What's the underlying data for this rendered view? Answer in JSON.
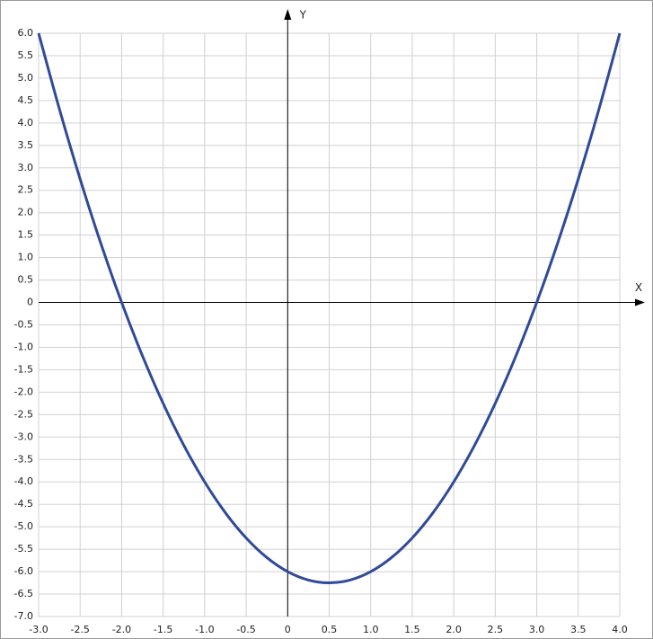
{
  "chart_data": {
    "type": "line",
    "x_label": "X",
    "y_label": "Y",
    "x": [
      -3,
      -2.75,
      -2.5,
      -2.25,
      -2,
      -1.75,
      -1.5,
      -1.25,
      -1,
      -0.75,
      -0.5,
      -0.25,
      0,
      0.25,
      0.5,
      0.75,
      1,
      1.25,
      1.5,
      1.75,
      2,
      2.25,
      2.5,
      2.75,
      3,
      3.25,
      3.5,
      3.75,
      4
    ],
    "series": [
      {
        "color": "#2f4a98",
        "values": [
          6,
          4.3125,
          2.75,
          1.3125,
          0,
          -1.1875,
          -2.25,
          -3.1875,
          -4,
          -4.6875,
          -5.25,
          -5.6875,
          -6,
          -6.1875,
          -6.25,
          -6.1875,
          -6,
          -5.6875,
          -5.25,
          -4.6875,
          -4,
          -3.1875,
          -2.25,
          -1.1875,
          0,
          1.3125,
          2.75,
          4.3125,
          6
        ]
      }
    ],
    "xlim": [
      -3,
      4
    ],
    "ylim": [
      -7,
      6
    ],
    "grid": true,
    "xticks": [
      {
        "value": -3,
        "label": "-3.0"
      },
      -2.5,
      {
        "value": -2,
        "label": "-2.0"
      },
      -1.5,
      {
        "value": -1,
        "label": "-1.0"
      },
      -0.5,
      0,
      0.5,
      {
        "value": 1,
        "label": "1.0"
      },
      1.5,
      {
        "value": 2,
        "label": "2.0"
      },
      2.5,
      {
        "value": 3,
        "label": "3.0"
      },
      3.5,
      {
        "value": 4,
        "label": "4.0"
      }
    ],
    "yticks": [
      {
        "value": -7,
        "label": "-7.0"
      },
      -6.5,
      {
        "value": -6,
        "label": "-6.0"
      },
      -5.5,
      {
        "value": -5,
        "label": "-5.0"
      },
      -4.5,
      {
        "value": -4,
        "label": "-4.0"
      },
      -3.5,
      {
        "value": -3,
        "label": "-3.0"
      },
      -2.5,
      {
        "value": -2,
        "label": "-2.0"
      },
      -1.5,
      {
        "value": -1,
        "label": "-1.0"
      },
      -0.5,
      0,
      0.5,
      {
        "value": 1,
        "label": "1.0"
      },
      1.5,
      {
        "value": 2,
        "label": "2.0"
      },
      2.5,
      {
        "value": 3,
        "label": "3.0"
      },
      3.5,
      {
        "value": 4,
        "label": "4.0"
      },
      4.5,
      {
        "value": 5,
        "label": "5.0"
      },
      5.5,
      {
        "value": 6,
        "label": "6.0"
      }
    ]
  }
}
